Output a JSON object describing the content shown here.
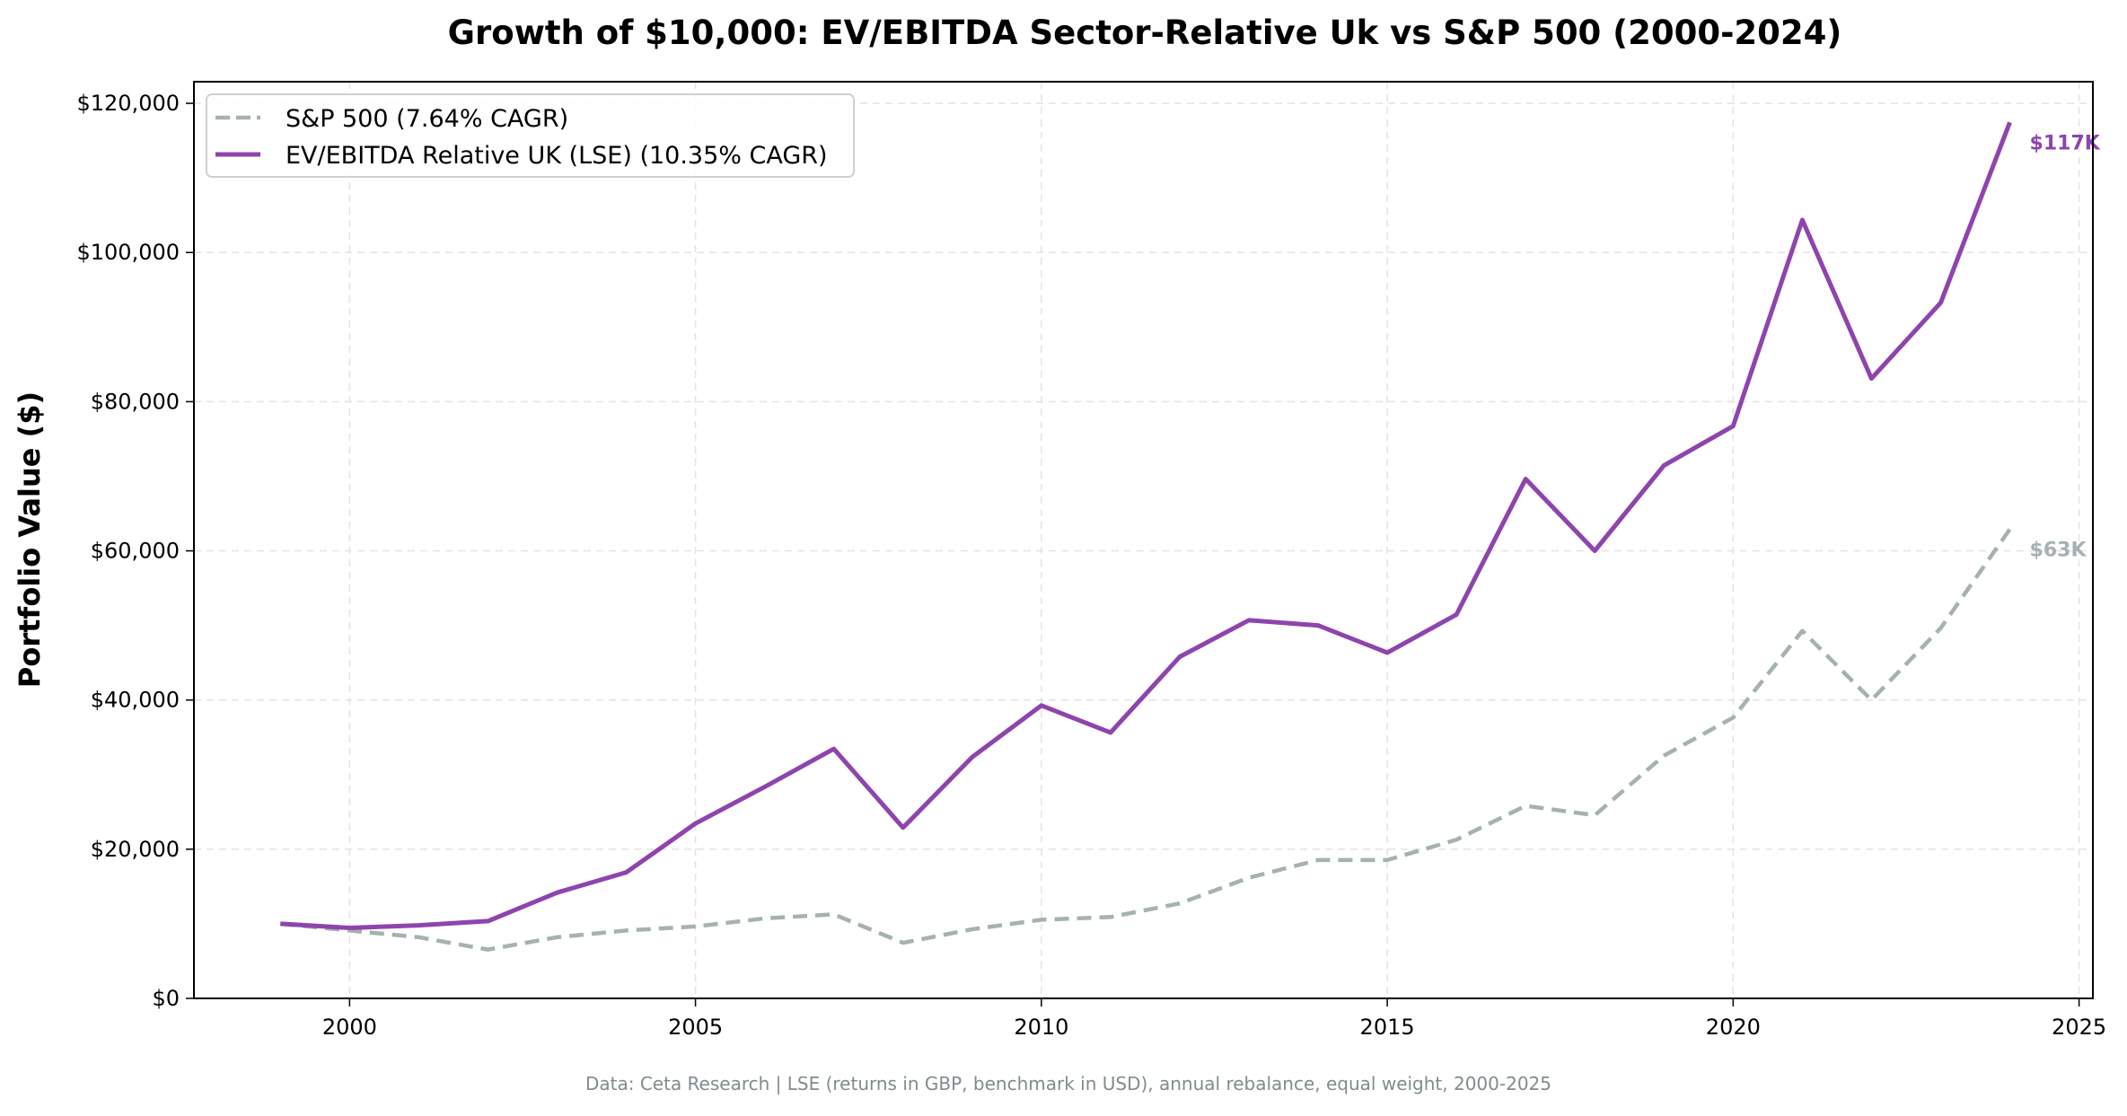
{
  "chart_data": {
    "type": "line",
    "title": "Growth of $10,000: EV/EBITDA Sector-Relative Uk vs S&P 500 (2000-2024)",
    "xlabel": "",
    "ylabel": "Portfolio Value ($)",
    "xlim": [
      1997.75,
      2025.2
    ],
    "ylim": [
      0,
      122900
    ],
    "xticks": [
      2000,
      2005,
      2010,
      2015,
      2020,
      2025
    ],
    "yticks": [
      0,
      20000,
      40000,
      60000,
      80000,
      100000,
      120000
    ],
    "ytick_labels": [
      "$0",
      "$20,000",
      "$40,000",
      "$60,000",
      "$80,000",
      "$100,000",
      "$120,000"
    ],
    "grid": true,
    "legend_position": "top-left",
    "x": [
      1999,
      2000,
      2001,
      2002,
      2003,
      2004,
      2005,
      2006,
      2007,
      2008,
      2009,
      2010,
      2011,
      2012,
      2013,
      2014,
      2015,
      2016,
      2017,
      2018,
      2019,
      2020,
      2021,
      2022,
      2023,
      2024
    ],
    "series": [
      {
        "name": "S&P 500 (7.64% CAGR)",
        "color": "#a5b1b2",
        "style": "dashed",
        "values": [
          10000,
          9100,
          8200,
          6550,
          8200,
          9100,
          9640,
          10730,
          11270,
          7450,
          9270,
          10550,
          10900,
          12730,
          16180,
          18550,
          18550,
          21270,
          25820,
          24550,
          32550,
          37640,
          49270,
          40000,
          49640,
          62900
        ],
        "end_label": "$63K"
      },
      {
        "name": "EV/EBITDA Relative UK (LSE) (10.35% CAGR)",
        "color": "#8e44ad",
        "style": "solid",
        "values": [
          10000,
          9450,
          9800,
          10360,
          14180,
          16900,
          23450,
          28360,
          33450,
          22900,
          32360,
          39270,
          35640,
          45800,
          50700,
          50000,
          46360,
          51450,
          69640,
          60000,
          71450,
          76730,
          104360,
          83100,
          93270,
          117450
        ],
        "end_label": "$117K"
      }
    ],
    "footnote": "Data: Ceta Research | LSE (returns in GBP, benchmark in USD), annual rebalance, equal weight, 2000-2025"
  }
}
